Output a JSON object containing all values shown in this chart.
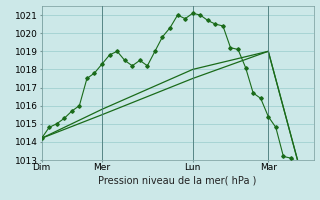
{
  "title": "Pression niveau de la mer( hPa )",
  "bg_color": "#cce8e8",
  "grid_color": "#99cccc",
  "line_color": "#1a6b1a",
  "ylim": [
    1013,
    1021.5
  ],
  "yticks": [
    1013,
    1014,
    1015,
    1016,
    1017,
    1018,
    1019,
    1020,
    1021
  ],
  "day_labels": [
    "Dim",
    "Mer",
    "Lun",
    "Mar"
  ],
  "day_positions": [
    0,
    8,
    20,
    30
  ],
  "xlim": [
    0,
    36
  ],
  "series1": [
    [
      0,
      1014.2
    ],
    [
      1,
      1014.8
    ],
    [
      2,
      1015.0
    ],
    [
      3,
      1015.3
    ],
    [
      4,
      1015.7
    ],
    [
      5,
      1016.0
    ],
    [
      6,
      1017.5
    ],
    [
      7,
      1017.8
    ],
    [
      8,
      1018.3
    ],
    [
      9,
      1018.8
    ],
    [
      10,
      1019.0
    ],
    [
      11,
      1018.5
    ],
    [
      12,
      1018.2
    ],
    [
      13,
      1018.5
    ],
    [
      14,
      1018.2
    ],
    [
      15,
      1019.0
    ],
    [
      16,
      1019.8
    ],
    [
      17,
      1020.3
    ],
    [
      18,
      1021.0
    ],
    [
      19,
      1020.8
    ],
    [
      20,
      1021.1
    ],
    [
      21,
      1021.0
    ],
    [
      22,
      1020.7
    ],
    [
      23,
      1020.5
    ],
    [
      24,
      1020.4
    ],
    [
      25,
      1019.2
    ],
    [
      26,
      1019.1
    ],
    [
      27,
      1018.1
    ],
    [
      28,
      1016.7
    ],
    [
      29,
      1016.4
    ],
    [
      30,
      1015.4
    ],
    [
      31,
      1014.8
    ],
    [
      32,
      1013.2
    ],
    [
      33,
      1013.1
    ],
    [
      34,
      1012.8
    ]
  ],
  "series2": [
    [
      0,
      1014.2
    ],
    [
      8,
      1015.5
    ],
    [
      20,
      1017.5
    ],
    [
      30,
      1019.0
    ],
    [
      34,
      1012.8
    ]
  ],
  "series3": [
    [
      0,
      1014.2
    ],
    [
      8,
      1015.8
    ],
    [
      20,
      1018.0
    ],
    [
      30,
      1019.0
    ],
    [
      34,
      1012.8
    ]
  ],
  "vline_positions": [
    8,
    20,
    30
  ],
  "xlabel_fontsize": 7.0,
  "tick_fontsize": 6.5,
  "ylabel_fontsize": 6.5
}
